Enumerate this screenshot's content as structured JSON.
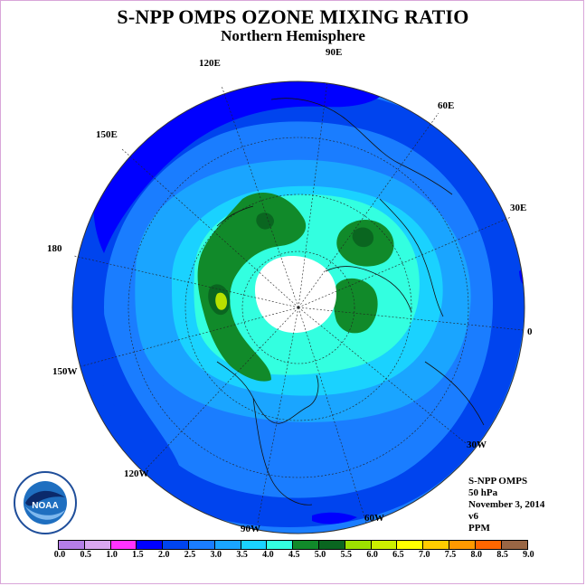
{
  "title": "S-NPP OMPS OZONE MIXING RATIO",
  "subtitle": "Northern Hemisphere",
  "longitude_labels": [
    "90E",
    "60E",
    "30E",
    "0",
    "30W",
    "60W",
    "90W",
    "120W",
    "150W",
    "180",
    "150E",
    "120E"
  ],
  "info": {
    "line1": "S-NPP OMPS",
    "line2": "50 hPa",
    "line3": "November 3, 2014",
    "line4": "v6",
    "line5": "PPM"
  },
  "logo_text": "NOAA",
  "colorbar": {
    "labels": [
      "0.0",
      "0.5",
      "1.0",
      "1.5",
      "2.0",
      "2.5",
      "3.0",
      "3.5",
      "4.0",
      "4.5",
      "5.0",
      "5.5",
      "6.0",
      "6.5",
      "7.0",
      "7.5",
      "8.0",
      "8.5",
      "9.0"
    ],
    "colors": [
      "#b57ee8",
      "#d9a6f0",
      "#ff33ff",
      "#0000ff",
      "#0044ee",
      "#1a7dff",
      "#1aa5ff",
      "#1ad2ff",
      "#33ffe0",
      "#118a2a",
      "#0a6620",
      "#9de000",
      "#ccf000",
      "#ffff00",
      "#ffcc00",
      "#ff9900",
      "#ff6600",
      "#ff0000",
      "#996644"
    ]
  },
  "colors": {
    "deep_blue": "#0000ff",
    "blue": "#0044ee",
    "mid_blue": "#1a7dff",
    "light_blue": "#1aa5ff",
    "cyan": "#1ad2ff",
    "aqua": "#33ffe0",
    "green": "#118a2a",
    "dark_green": "#0a6620",
    "lime": "#b8e000",
    "pole_white": "#ffffff"
  }
}
